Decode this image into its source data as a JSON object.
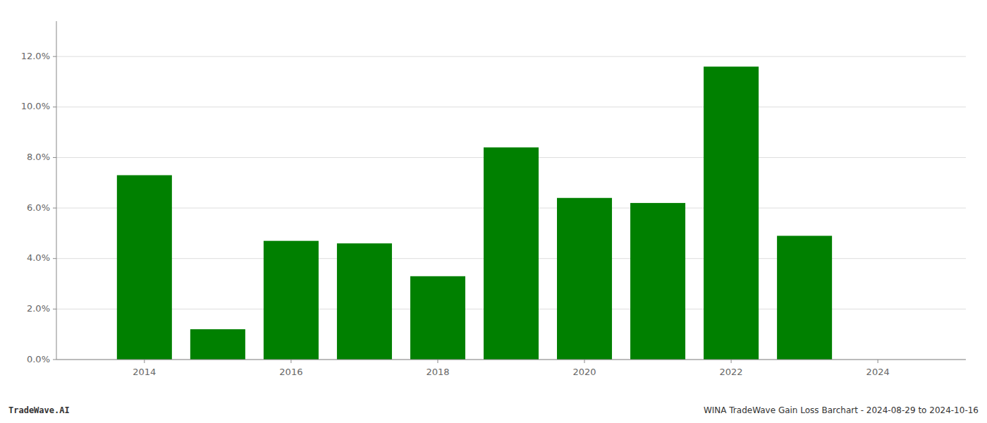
{
  "chart_data": {
    "type": "bar",
    "x": [
      2014,
      2015,
      2016,
      2017,
      2018,
      2019,
      2020,
      2021,
      2022,
      2023
    ],
    "values": [
      0.073,
      0.012,
      0.047,
      0.046,
      0.033,
      0.084,
      0.064,
      0.062,
      0.116,
      0.049
    ],
    "color": "#008000",
    "ylim": [
      0,
      0.134
    ],
    "yticks": [
      {
        "value": 0.0,
        "label": "0.0%"
      },
      {
        "value": 0.02,
        "label": "2.0%"
      },
      {
        "value": 0.04,
        "label": "4.0%"
      },
      {
        "value": 0.06,
        "label": "6.0%"
      },
      {
        "value": 0.08,
        "label": "8.0%"
      },
      {
        "value": 0.1,
        "label": "10.0%"
      },
      {
        "value": 0.12,
        "label": "12.0%"
      }
    ],
    "xlim": [
      2012.8,
      2025.2
    ],
    "xticks": [
      2014,
      2016,
      2018,
      2020,
      2022,
      2024
    ],
    "grid": true,
    "annotations": [
      "TradeWave.AI",
      "WINA TradeWave Gain Loss Barchart - 2024-08-29 to 2024-10-16"
    ]
  }
}
